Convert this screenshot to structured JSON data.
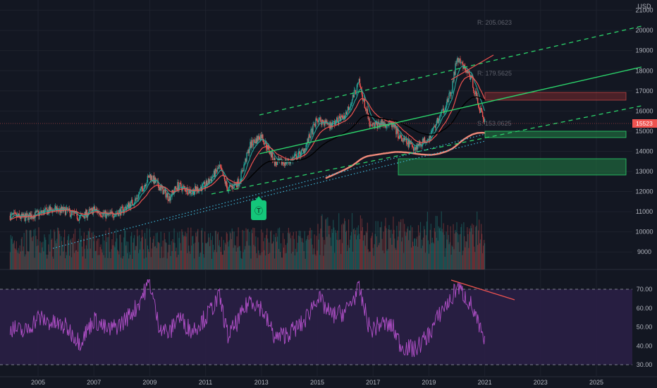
{
  "chart_data": [
    {
      "type": "candlestick",
      "currency": "USD",
      "price_axis_ticks": [
        "9000",
        "10000",
        "11000",
        "12000",
        "13000",
        "14000",
        "15000",
        "16000",
        "17000",
        "18000",
        "19000",
        "20000",
        "21000"
      ],
      "time_axis_ticks": [
        "2005",
        "2007",
        "2009",
        "2011",
        "2013",
        "2015",
        "2017",
        "2019",
        "2021",
        "2023",
        "2025"
      ],
      "last_price_tag": "15523",
      "annotations": {
        "r1": "R: 205.0623",
        "r2": "R: 179.5625",
        "s": "S: 153.0625"
      },
      "marker_label": "Ⓣ",
      "colors": {
        "up": "#26a69a",
        "down": "#ef5350",
        "ema_fast": "#26a69a",
        "ema_mid": "#ef5350",
        "ema_slow": "#000000",
        "sma_long": "#f08a7a"
      },
      "monthly_close": [
        {
          "x": 2004.0,
          "y": 10800
        },
        {
          "x": 2004.5,
          "y": 10700
        },
        {
          "x": 2005.0,
          "y": 10900
        },
        {
          "x": 2005.5,
          "y": 11100
        },
        {
          "x": 2006.0,
          "y": 11050
        },
        {
          "x": 2006.5,
          "y": 10700
        },
        {
          "x": 2007.0,
          "y": 11100
        },
        {
          "x": 2007.5,
          "y": 10800
        },
        {
          "x": 2008.0,
          "y": 11050
        },
        {
          "x": 2008.5,
          "y": 11600
        },
        {
          "x": 2009.0,
          "y": 12800
        },
        {
          "x": 2009.3,
          "y": 12300
        },
        {
          "x": 2009.7,
          "y": 11700
        },
        {
          "x": 2010.0,
          "y": 12300
        },
        {
          "x": 2010.5,
          "y": 12000
        },
        {
          "x": 2011.0,
          "y": 12300
        },
        {
          "x": 2011.5,
          "y": 13200
        },
        {
          "x": 2011.8,
          "y": 12100
        },
        {
          "x": 2012.2,
          "y": 12500
        },
        {
          "x": 2012.6,
          "y": 14300
        },
        {
          "x": 2013.0,
          "y": 14800
        },
        {
          "x": 2013.5,
          "y": 13400
        },
        {
          "x": 2014.0,
          "y": 13500
        },
        {
          "x": 2014.5,
          "y": 14000
        },
        {
          "x": 2015.0,
          "y": 15600
        },
        {
          "x": 2015.5,
          "y": 15300
        },
        {
          "x": 2016.0,
          "y": 15800
        },
        {
          "x": 2016.5,
          "y": 17400
        },
        {
          "x": 2016.9,
          "y": 15200
        },
        {
          "x": 2017.3,
          "y": 15400
        },
        {
          "x": 2017.7,
          "y": 15300
        },
        {
          "x": 2018.0,
          "y": 14600
        },
        {
          "x": 2018.5,
          "y": 14200
        },
        {
          "x": 2019.0,
          "y": 14700
        },
        {
          "x": 2019.5,
          "y": 16000
        },
        {
          "x": 2019.8,
          "y": 16900
        },
        {
          "x": 2020.0,
          "y": 18600
        },
        {
          "x": 2020.5,
          "y": 17700
        },
        {
          "x": 2020.8,
          "y": 16200
        },
        {
          "x": 2021.0,
          "y": 15500
        }
      ],
      "rsi": {
        "ticks": [
          "30.00",
          "40.00",
          "50.00",
          "60.00",
          "70.00"
        ],
        "overbought": 70,
        "oversold": 30,
        "values": [
          {
            "x": 2004.0,
            "y": 50
          },
          {
            "x": 2004.5,
            "y": 47
          },
          {
            "x": 2005.0,
            "y": 55
          },
          {
            "x": 2005.5,
            "y": 52
          },
          {
            "x": 2006.0,
            "y": 50
          },
          {
            "x": 2006.5,
            "y": 42
          },
          {
            "x": 2007.0,
            "y": 54
          },
          {
            "x": 2007.5,
            "y": 48
          },
          {
            "x": 2008.0,
            "y": 52
          },
          {
            "x": 2008.5,
            "y": 60
          },
          {
            "x": 2009.0,
            "y": 74
          },
          {
            "x": 2009.3,
            "y": 52
          },
          {
            "x": 2009.7,
            "y": 46
          },
          {
            "x": 2010.0,
            "y": 56
          },
          {
            "x": 2010.5,
            "y": 48
          },
          {
            "x": 2011.0,
            "y": 55
          },
          {
            "x": 2011.5,
            "y": 66
          },
          {
            "x": 2011.8,
            "y": 45
          },
          {
            "x": 2012.2,
            "y": 54
          },
          {
            "x": 2012.6,
            "y": 65
          },
          {
            "x": 2013.0,
            "y": 60
          },
          {
            "x": 2013.5,
            "y": 44
          },
          {
            "x": 2014.0,
            "y": 47
          },
          {
            "x": 2014.5,
            "y": 52
          },
          {
            "x": 2015.0,
            "y": 66
          },
          {
            "x": 2015.5,
            "y": 56
          },
          {
            "x": 2016.0,
            "y": 58
          },
          {
            "x": 2016.5,
            "y": 70
          },
          {
            "x": 2016.9,
            "y": 48
          },
          {
            "x": 2017.3,
            "y": 52
          },
          {
            "x": 2017.7,
            "y": 50
          },
          {
            "x": 2018.0,
            "y": 40
          },
          {
            "x": 2018.5,
            "y": 38
          },
          {
            "x": 2019.0,
            "y": 46
          },
          {
            "x": 2019.5,
            "y": 60
          },
          {
            "x": 2019.8,
            "y": 64
          },
          {
            "x": 2020.0,
            "y": 72
          },
          {
            "x": 2020.5,
            "y": 62
          },
          {
            "x": 2020.8,
            "y": 50
          },
          {
            "x": 2021.0,
            "y": 41
          }
        ]
      }
    }
  ]
}
